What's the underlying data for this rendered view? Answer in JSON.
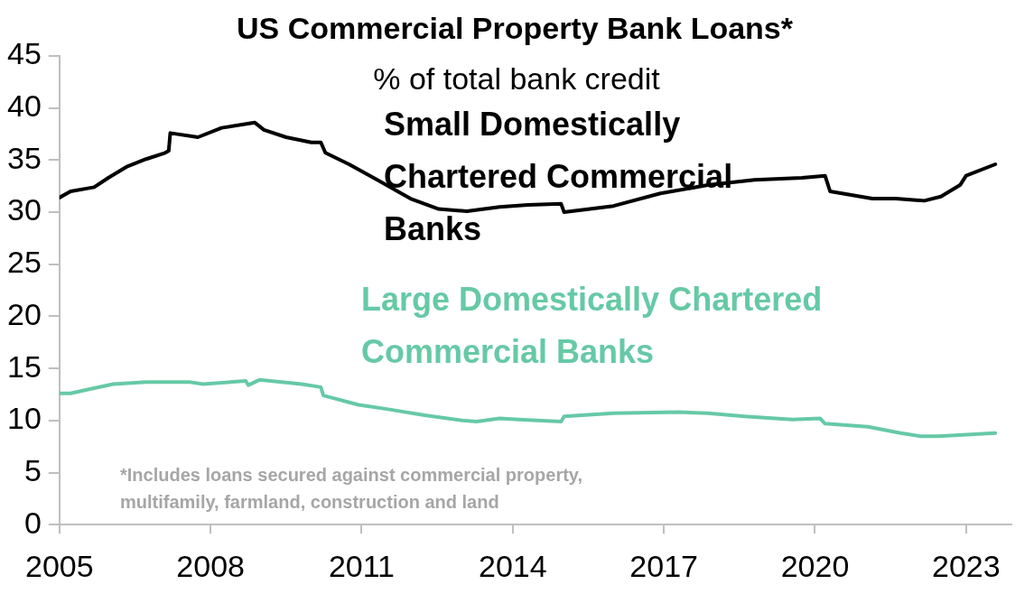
{
  "chart_data": {
    "type": "line",
    "title": "US Commercial Property Bank Loans*",
    "subtitle": "% of total bank credit",
    "annotations": [
      "*Includes loans secured against commercial property, multifamily, farmland, construction and land"
    ],
    "xlim": [
      2005,
      2023.9
    ],
    "xticks": [
      2005,
      2008,
      2011,
      2014,
      2017,
      2020,
      2023
    ],
    "ylim": [
      0,
      45
    ],
    "yticks": [
      0,
      5,
      10,
      15,
      20,
      25,
      30,
      35,
      40,
      45
    ],
    "grid": false,
    "legend": false,
    "marker": "none",
    "line_style": "solid",
    "series": [
      {
        "name": "Small Domestically Chartered Commercial Banks",
        "color": "#000000",
        "x": [
          2005,
          2005.22,
          2005.69,
          2005.97,
          2006.35,
          2006.72,
          2007.1,
          2007.17,
          2007.2,
          2007.75,
          2008.22,
          2008.88,
          2009.06,
          2009.5,
          2010.0,
          2010.19,
          2010.28,
          2010.75,
          2011.31,
          2011.97,
          2012.53,
          2013.09,
          2013.74,
          2014.3,
          2014.96,
          2015.02,
          2016.0,
          2016.93,
          2017.87,
          2018.8,
          2019.74,
          2020.2,
          2020.3,
          2021.14,
          2021.6,
          2022.17,
          2022.5,
          2022.88,
          2023.0,
          2023.58
        ],
        "values": [
          31.4,
          32.0,
          32.4,
          33.3,
          34.4,
          35.1,
          35.7,
          35.9,
          37.6,
          37.2,
          38.1,
          38.6,
          37.9,
          37.2,
          36.7,
          36.7,
          35.7,
          34.6,
          33.1,
          31.3,
          30.3,
          30.1,
          30.5,
          30.7,
          30.8,
          30.0,
          30.6,
          31.8,
          32.6,
          33.1,
          33.3,
          33.5,
          32.0,
          31.3,
          31.3,
          31.1,
          31.5,
          32.6,
          33.5,
          34.6
        ]
      },
      {
        "name": "Large Domestically Chartered Commercial Banks",
        "color": "#66c9a6",
        "x": [
          2005,
          2005.22,
          2005.69,
          2006.07,
          2006.72,
          2007.57,
          2007.85,
          2008.7,
          2008.75,
          2008.97,
          2009.81,
          2010.19,
          2010.24,
          2010.94,
          2011.5,
          2012.25,
          2013.0,
          2013.28,
          2013.74,
          2014.12,
          2014.96,
          2015.02,
          2016.0,
          2017.3,
          2017.87,
          2018.6,
          2019.55,
          2020.1,
          2020.2,
          2021.05,
          2021.7,
          2022.08,
          2022.45,
          2023.58
        ],
        "values": [
          12.6,
          12.6,
          13.1,
          13.5,
          13.7,
          13.7,
          13.5,
          13.8,
          13.4,
          13.9,
          13.5,
          13.2,
          12.4,
          11.5,
          11.1,
          10.5,
          10.0,
          9.9,
          10.2,
          10.1,
          9.9,
          10.4,
          10.7,
          10.8,
          10.7,
          10.4,
          10.1,
          10.2,
          9.7,
          9.4,
          8.8,
          8.5,
          8.5,
          8.8
        ]
      }
    ]
  }
}
